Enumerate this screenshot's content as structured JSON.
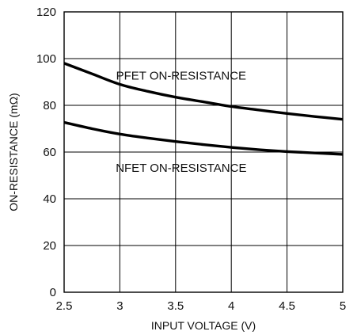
{
  "chart_data": {
    "type": "line",
    "xlabel": "INPUT VOLTAGE (V)",
    "ylabel": "ON-RESISTANCE (mΩ)",
    "xlim": [
      2.5,
      5
    ],
    "ylim": [
      0,
      120
    ],
    "xticks": [
      "2.5",
      "3",
      "3.5",
      "4",
      "4.5",
      "5"
    ],
    "yticks": [
      "0",
      "20",
      "40",
      "60",
      "80",
      "100",
      "120"
    ],
    "grid": true,
    "legend": "none",
    "series": [
      {
        "name": "PFET ON-RESISTANCE",
        "x": [
          2.5,
          2.75,
          3.0,
          3.25,
          3.5,
          3.75,
          4.0,
          4.25,
          4.5,
          4.75,
          5.0
        ],
        "y": [
          98,
          93.5,
          89,
          86,
          83.5,
          81.5,
          79.5,
          78,
          76.5,
          75.2,
          74
        ]
      },
      {
        "name": "NFET ON-RESISTANCE",
        "x": [
          2.5,
          2.75,
          3.0,
          3.25,
          3.5,
          3.75,
          4.0,
          4.25,
          4.5,
          4.75,
          5.0
        ],
        "y": [
          72.7,
          70,
          67.7,
          66,
          64.5,
          63.2,
          62,
          61,
          60.2,
          59.6,
          59
        ]
      }
    ],
    "annotations": [
      {
        "text": "PFET ON-RESISTANCE",
        "x": 3.55,
        "y": 91
      },
      {
        "text": "NFET ON-RESISTANCE",
        "x": 3.55,
        "y": 51.5
      }
    ]
  }
}
